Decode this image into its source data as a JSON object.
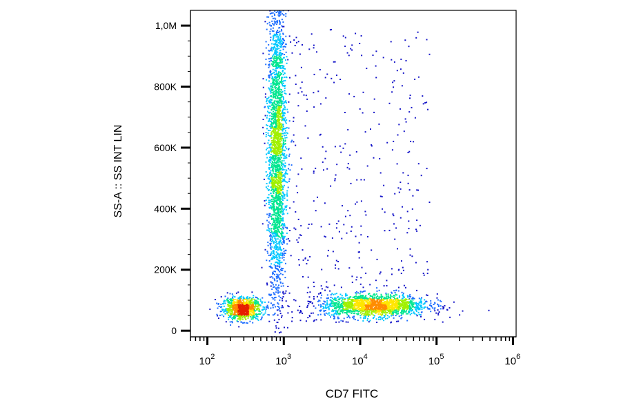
{
  "chart_data": {
    "type": "scatter",
    "title": "",
    "xlabel": "CD7 FITC",
    "ylabel": "SS-A :: SS INT LIN",
    "x_scale": "log",
    "y_scale": "linear",
    "xlim": [
      60,
      1100000
    ],
    "ylim": [
      -20000,
      1050000
    ],
    "x_ticks": [
      {
        "value": 100,
        "base": "10",
        "exp": "2"
      },
      {
        "value": 1000,
        "base": "10",
        "exp": "3"
      },
      {
        "value": 10000,
        "base": "10",
        "exp": "4"
      },
      {
        "value": 100000,
        "base": "10",
        "exp": "5"
      },
      {
        "value": 1000000,
        "base": "10",
        "exp": "6"
      }
    ],
    "y_ticks": [
      {
        "value": 0,
        "label": "0"
      },
      {
        "value": 200000,
        "label": "200K"
      },
      {
        "value": 400000,
        "label": "400K"
      },
      {
        "value": 600000,
        "label": "600K"
      },
      {
        "value": 800000,
        "label": "800K"
      },
      {
        "value": 1000000,
        "label": "1,0M"
      }
    ],
    "grid": false,
    "legend": "none",
    "colormap": [
      "#1414c8",
      "#1e6eff",
      "#00c8ff",
      "#00e690",
      "#a0f000",
      "#ffe600",
      "#ff8c00",
      "#e61e00"
    ],
    "populations": [
      {
        "name": "",
        "x_center": 280,
        "y_center": 75000,
        "log_x_spread": 0.13,
        "y_spread": 18000,
        "count": 900
      },
      {
        "name": "",
        "x_center": 800,
        "y_center": 600000,
        "log_x_spread": 0.06,
        "y_spread": 260000,
        "count": 2600
      },
      {
        "name": "",
        "x_center": 15000,
        "y_center": 85000,
        "log_x_spread": 0.35,
        "y_spread": 18000,
        "count": 1700
      }
    ]
  }
}
